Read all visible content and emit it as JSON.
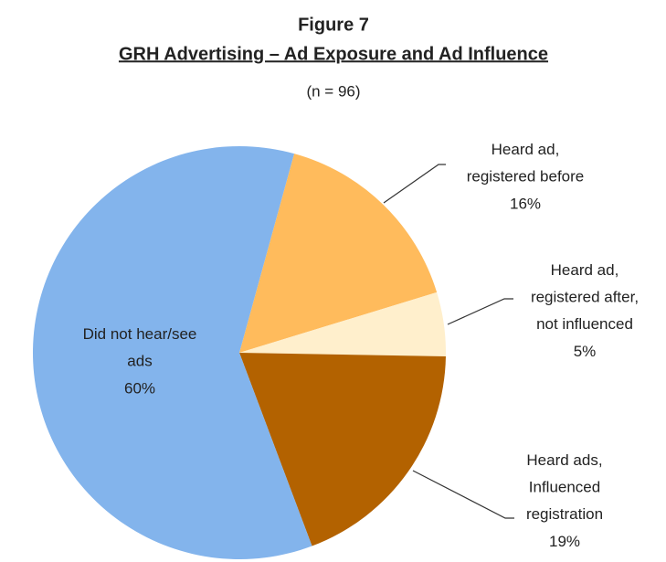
{
  "chart_data": {
    "type": "pie",
    "title": "Figure 7",
    "subtitle": "GRH Advertising – Ad Exposure and Ad Influence",
    "note": "(n = 96)",
    "categories": [
      "Heard ad,\nregistered before",
      "Heard ad,\nregistered after,\nnot influenced",
      "Heard ads,\nInfluenced\nregistration",
      "Did not hear/see\nads"
    ],
    "values": [
      16,
      5,
      19,
      60
    ],
    "value_labels": [
      "16%",
      "5%",
      "19%",
      "60%"
    ],
    "colors": [
      "#FFBB5C",
      "#FFEFCC",
      "#B36200",
      "#83B4EC"
    ]
  }
}
